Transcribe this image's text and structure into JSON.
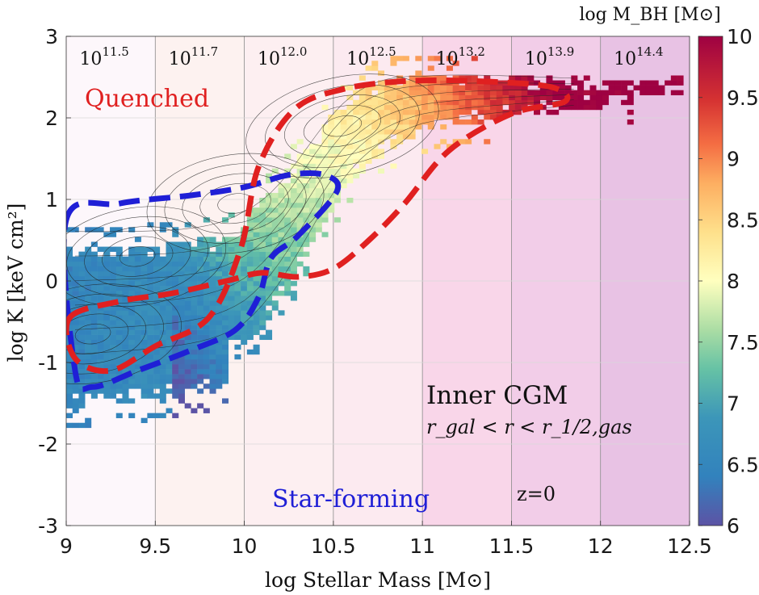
{
  "chart_data": {
    "type": "heatmap",
    "title": "",
    "xlabel": "log Stellar Mass [M⊙]",
    "ylabel": "log K [keV cm²]",
    "xlim": [
      9,
      12.5
    ],
    "ylim": [
      -3,
      3
    ],
    "x_ticks": [
      "9",
      "9.5",
      "10",
      "10.5",
      "11",
      "11.5",
      "12",
      "12.5"
    ],
    "y_ticks": [
      "-3",
      "-2",
      "-1",
      "0",
      "1",
      "2",
      "3"
    ],
    "colorbar": {
      "label": "log M_BH [M⊙]",
      "range": [
        6,
        10
      ],
      "ticks": [
        "6",
        "6.5",
        "7",
        "7.5",
        "8",
        "8.5",
        "9",
        "9.5",
        "10"
      ]
    },
    "halo_mass_bins": {
      "boundaries": [
        9,
        9.5,
        10,
        10.5,
        11,
        11.5,
        12,
        12.5
      ],
      "labels": [
        {
          "base": "10",
          "exp": "11.5"
        },
        {
          "base": "10",
          "exp": "11.7"
        },
        {
          "base": "10",
          "exp": "12.0"
        },
        {
          "base": "10",
          "exp": "12.5"
        },
        {
          "base": "10",
          "exp": "13.2"
        },
        {
          "base": "10",
          "exp": "13.9"
        },
        {
          "base": "10",
          "exp": "14.4"
        }
      ],
      "shade_colors": [
        "#fdf7fb",
        "#fdf2f0",
        "#fdeff1",
        "#fceaf0",
        "#f9d6e9",
        "#f2cde8",
        "#e8c2e4"
      ]
    },
    "regions": [
      {
        "name": "Quenched",
        "color": "#e02020"
      },
      {
        "name": "Star-forming",
        "color": "#1f1fd6"
      }
    ],
    "quenched_contour": [
      [
        9.02,
        -0.45
      ],
      [
        9.3,
        -0.25
      ],
      [
        9.6,
        -0.15
      ],
      [
        9.9,
        0.0
      ],
      [
        10.1,
        0.1
      ],
      [
        10.3,
        0.05
      ],
      [
        10.5,
        0.15
      ],
      [
        10.7,
        0.5
      ],
      [
        10.9,
        0.95
      ],
      [
        11.15,
        1.6
      ],
      [
        11.5,
        2.05
      ],
      [
        11.8,
        2.2
      ],
      [
        11.72,
        2.38
      ],
      [
        11.3,
        2.45
      ],
      [
        10.9,
        2.45
      ],
      [
        10.55,
        2.35
      ],
      [
        10.28,
        2.1
      ],
      [
        10.08,
        1.4
      ],
      [
        9.98,
        0.4
      ],
      [
        9.8,
        -0.45
      ],
      [
        9.5,
        -0.8
      ],
      [
        9.25,
        -1.1
      ],
      [
        9.05,
        -0.95
      ]
    ],
    "starforming_contour": [
      [
        9.0,
        0.75
      ],
      [
        9.3,
        0.95
      ],
      [
        9.7,
        1.05
      ],
      [
        10.0,
        1.15
      ],
      [
        10.25,
        1.3
      ],
      [
        10.45,
        1.3
      ],
      [
        10.52,
        1.1
      ],
      [
        10.3,
        0.55
      ],
      [
        10.15,
        0.28
      ],
      [
        10.08,
        -0.2
      ],
      [
        9.95,
        -0.6
      ],
      [
        9.7,
        -0.85
      ],
      [
        9.4,
        -1.1
      ],
      [
        9.15,
        -1.3
      ],
      [
        9.05,
        -1.1
      ]
    ],
    "density_peaks": [
      {
        "x": 9.15,
        "y": -0.65
      },
      {
        "x": 9.4,
        "y": 0.3
      },
      {
        "x": 9.95,
        "y": 0.95
      },
      {
        "x": 10.55,
        "y": 1.9
      }
    ],
    "annotations": {
      "quenched": "Quenched",
      "star_forming": "Star-forming",
      "panel_title": "Inner CGM",
      "panel_subtitle": "r_gal < r < r_1/2,gas",
      "redshift": "z=0"
    }
  }
}
